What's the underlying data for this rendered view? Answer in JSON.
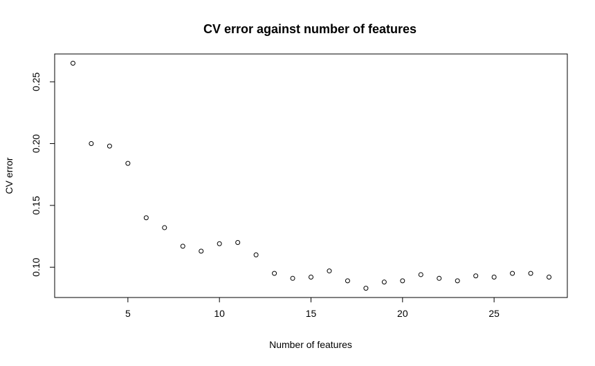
{
  "chart_data": {
    "type": "scatter",
    "title": "CV error against number of features",
    "xlabel": "Number of features",
    "ylabel": "CV error",
    "xlim": [
      1.0,
      29.0
    ],
    "ylim": [
      0.0755,
      0.2725
    ],
    "xticks": [
      5,
      10,
      15,
      20,
      25
    ],
    "yticks": [
      0.1,
      0.15,
      0.2,
      0.25
    ],
    "xtick_labels": [
      "5",
      "10",
      "15",
      "20",
      "25"
    ],
    "ytick_labels": [
      "0.10",
      "0.15",
      "0.20",
      "0.25"
    ],
    "grid": false,
    "marker": "open-circle",
    "color": "#000000",
    "x": [
      2,
      3,
      4,
      5,
      6,
      7,
      8,
      9,
      10,
      11,
      12,
      13,
      14,
      15,
      16,
      17,
      18,
      19,
      20,
      21,
      22,
      23,
      24,
      25,
      26,
      27,
      28
    ],
    "y": [
      0.265,
      0.2,
      0.198,
      0.184,
      0.14,
      0.132,
      0.117,
      0.113,
      0.119,
      0.12,
      0.11,
      0.095,
      0.091,
      0.092,
      0.097,
      0.089,
      0.083,
      0.088,
      0.089,
      0.094,
      0.091,
      0.089,
      0.093,
      0.092,
      0.095,
      0.095,
      0.092
    ]
  }
}
